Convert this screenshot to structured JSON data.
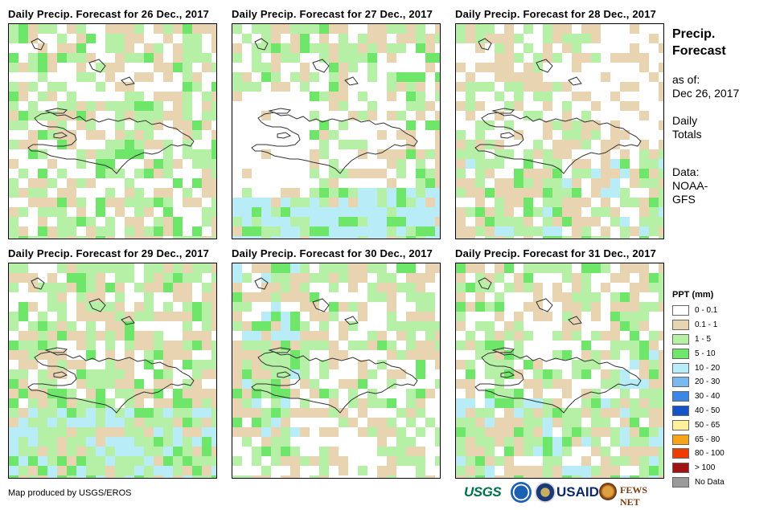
{
  "panels": [
    {
      "title": "Daily Precip. Forecast for 26 Dec., 2017",
      "day": 26
    },
    {
      "title": "Daily Precip. Forecast for 27 Dec., 2017",
      "day": 27
    },
    {
      "title": "Daily Precip. Forecast for 28 Dec., 2017",
      "day": 28
    },
    {
      "title": "Daily Precip. Forecast for 29 Dec., 2017",
      "day": 29
    },
    {
      "title": "Daily Precip. Forecast for 30 Dec., 2017",
      "day": 30
    },
    {
      "title": "Daily Precip. Forecast for 31 Dec., 2017",
      "day": 31
    }
  ],
  "sidebar": {
    "title_line1": "Precip.",
    "title_line2": "Forecast",
    "asof_line1": "as of:",
    "asof_line2": "Dec 26, 2017",
    "totals_line1": "Daily",
    "totals_line2": "Totals",
    "data_line1": "Data:",
    "data_line2": "NOAA-",
    "data_line3": "GFS"
  },
  "legend": {
    "title": "PPT (mm)",
    "items": [
      {
        "label": "0 - 0.1",
        "color": "#ffffff"
      },
      {
        "label": "0.1 - 1",
        "color": "#e8d4b0"
      },
      {
        "label": "1 - 5",
        "color": "#b6f0a6"
      },
      {
        "label": "5 - 10",
        "color": "#6ee66a"
      },
      {
        "label": "10 - 20",
        "color": "#b8ecf6"
      },
      {
        "label": "20 - 30",
        "color": "#7ab8f0"
      },
      {
        "label": "30 - 40",
        "color": "#3c86e6"
      },
      {
        "label": "40 - 50",
        "color": "#1452c8"
      },
      {
        "label": "50 - 65",
        "color": "#fff09a"
      },
      {
        "label": "65 - 80",
        "color": "#f7a41c"
      },
      {
        "label": "80 - 100",
        "color": "#f03c00"
      },
      {
        "label": "> 100",
        "color": "#a01212"
      },
      {
        "label": "No Data",
        "color": "#9a9a9a"
      }
    ]
  },
  "credit": "Map produced by USGS/EROS",
  "logos": {
    "usgs": "USGS",
    "usaid": "USAID",
    "fews": "FEWS NET"
  }
}
